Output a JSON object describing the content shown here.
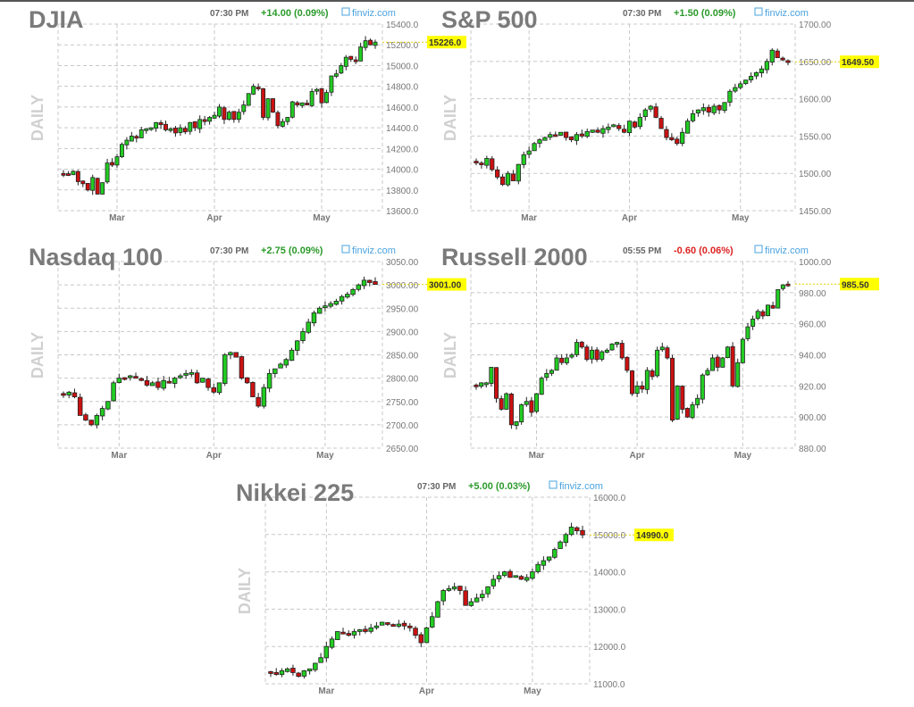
{
  "colors": {
    "up": "#22cc22",
    "down": "#cc1111",
    "grid": "#c8c8c8",
    "price_tag": "#ffff00",
    "title": "#7a7a7a",
    "positive": "#2a9a2a",
    "negative": "#dd2222",
    "brand": "#4aa3df"
  },
  "brand_label": "finviz.com",
  "period_label": "DAILY",
  "chart_data": [
    {
      "type": "candlestick",
      "title": "DJIA",
      "time": "07:30 PM",
      "change": "+14.00 (0.09%)",
      "direction": "up",
      "last_label": "15226.0",
      "last": 15226,
      "ylim": [
        13600,
        15400
      ],
      "yticks": [
        13600,
        13800,
        14000,
        14200,
        14400,
        14600,
        14800,
        15000,
        15200,
        15400
      ],
      "ytick_labels": [
        "13600.0",
        "13800.0",
        "14000.0",
        "14200.0",
        "14400.0",
        "14600.0",
        "14800.0",
        "15000.0",
        "15200.0",
        "15400.0"
      ],
      "months": [
        {
          "label": "Mar",
          "index": 11
        },
        {
          "label": "Apr",
          "index": 31
        },
        {
          "label": "May",
          "index": 53
        }
      ],
      "closes": [
        13950,
        13940,
        13980,
        13880,
        13860,
        13800,
        13920,
        13760,
        13870,
        14060,
        14040,
        14120,
        14240,
        14280,
        14320,
        14300,
        14380,
        14390,
        14400,
        14450,
        14430,
        14380,
        14390,
        14350,
        14400,
        14360,
        14450,
        14400,
        14480,
        14460,
        14500,
        14520,
        14600,
        14480,
        14550,
        14480,
        14550,
        14620,
        14730,
        14800,
        14780,
        14500,
        14680,
        14550,
        14420,
        14460,
        14500,
        14650,
        14620,
        14640,
        14620,
        14750,
        14770,
        14640,
        14740,
        14900,
        14920,
        15000,
        15080,
        15060,
        15050,
        15180,
        15240,
        15200,
        15226
      ]
    },
    {
      "type": "candlestick",
      "title": "S&P 500",
      "time": "07:30 PM",
      "change": "+1.50 (0.09%)",
      "direction": "up",
      "last_label": "1649.50",
      "last": 1649.5,
      "ylim": [
        1450,
        1700
      ],
      "yticks": [
        1450,
        1500,
        1550,
        1600,
        1650,
        1700
      ],
      "ytick_labels": [
        "1450.00",
        "1500.00",
        "1550.00",
        "1600.00",
        "1650.00",
        "1700.00"
      ],
      "months": [
        {
          "label": "Mar",
          "index": 10
        },
        {
          "label": "Apr",
          "index": 29
        },
        {
          "label": "May",
          "index": 50
        }
      ],
      "closes": [
        1515,
        1512,
        1520,
        1505,
        1495,
        1485,
        1500,
        1490,
        1512,
        1525,
        1530,
        1540,
        1545,
        1548,
        1552,
        1550,
        1555,
        1548,
        1545,
        1552,
        1550,
        1556,
        1558,
        1555,
        1560,
        1562,
        1565,
        1560,
        1555,
        1570,
        1562,
        1575,
        1585,
        1590,
        1575,
        1560,
        1548,
        1545,
        1540,
        1555,
        1570,
        1580,
        1585,
        1588,
        1582,
        1590,
        1585,
        1595,
        1610,
        1615,
        1620,
        1625,
        1630,
        1635,
        1640,
        1650,
        1665,
        1655,
        1652,
        1649.5
      ]
    },
    {
      "type": "candlestick",
      "title": "Nasdaq 100",
      "time": "07:30 PM",
      "change": "+2.75 (0.09%)",
      "direction": "up",
      "last_label": "3001.00",
      "last": 3001,
      "ylim": [
        2650,
        3050
      ],
      "yticks": [
        2650,
        2700,
        2750,
        2800,
        2850,
        2900,
        2950,
        3000,
        3050
      ],
      "ytick_labels": [
        "2650.00",
        "2700.00",
        "2750.00",
        "2800.00",
        "2850.00",
        "2900.00",
        "2950.00",
        "3000.00",
        "3050.00"
      ],
      "months": [
        {
          "label": "Mar",
          "index": 10
        },
        {
          "label": "Apr",
          "index": 27
        },
        {
          "label": "May",
          "index": 47
        }
      ],
      "closes": [
        2765,
        2770,
        2760,
        2720,
        2710,
        2700,
        2720,
        2735,
        2750,
        2790,
        2800,
        2800,
        2805,
        2800,
        2795,
        2785,
        2790,
        2780,
        2795,
        2790,
        2800,
        2805,
        2810,
        2812,
        2790,
        2800,
        2780,
        2770,
        2790,
        2850,
        2855,
        2845,
        2800,
        2790,
        2760,
        2740,
        2780,
        2810,
        2820,
        2830,
        2840,
        2860,
        2880,
        2900,
        2920,
        2940,
        2950,
        2955,
        2960,
        2965,
        2975,
        2980,
        2990,
        3000,
        3010,
        3005,
        3001
      ]
    },
    {
      "type": "candlestick",
      "title": "Russell 2000",
      "time": "05:55 PM",
      "change": "-0.60 (0.06%)",
      "direction": "down",
      "last_label": "985.50",
      "last": 985.5,
      "ylim": [
        880,
        1000
      ],
      "yticks": [
        880,
        900,
        920,
        940,
        960,
        980,
        1000
      ],
      "ytick_labels": [
        "880.00",
        "900.00",
        "920.00",
        "940.00",
        "960.00",
        "980.00",
        "1000.00"
      ],
      "months": [
        {
          "label": "Mar",
          "index": 12
        },
        {
          "label": "Apr",
          "index": 32
        },
        {
          "label": "May",
          "index": 53
        }
      ],
      "closes": [
        920,
        922,
        922,
        932,
        912,
        905,
        915,
        895,
        897,
        908,
        910,
        903,
        915,
        925,
        928,
        930,
        938,
        935,
        938,
        940,
        948,
        945,
        937,
        943,
        937,
        942,
        943,
        947,
        948,
        938,
        930,
        915,
        920,
        918,
        930,
        926,
        943,
        945,
        938,
        898,
        920,
        905,
        900,
        908,
        912,
        927,
        930,
        938,
        932,
        938,
        945,
        920,
        935,
        950,
        958,
        963,
        968,
        965,
        972,
        970,
        982,
        985,
        985.5
      ]
    },
    {
      "type": "candlestick",
      "title": "Nikkei 225",
      "time": "07:30 PM",
      "change": "+5.00 (0.03%)",
      "direction": "up",
      "last_label": "14990.0",
      "last": 14990,
      "ylim": [
        11000,
        16000
      ],
      "yticks": [
        11000,
        12000,
        13000,
        14000,
        15000,
        16000
      ],
      "ytick_labels": [
        "11000.0",
        "12000.0",
        "13000.0",
        "14000.0",
        "15000.0",
        "16000.0"
      ],
      "months": [
        {
          "label": "Mar",
          "index": 10
        },
        {
          "label": "Apr",
          "index": 28
        },
        {
          "label": "May",
          "index": 47
        }
      ],
      "closes": [
        11300,
        11250,
        11350,
        11400,
        11300,
        11200,
        11350,
        11400,
        11550,
        11700,
        12000,
        12200,
        12400,
        12350,
        12300,
        12400,
        12450,
        12400,
        12500,
        12550,
        12650,
        12600,
        12550,
        12600,
        12550,
        12500,
        12300,
        12100,
        12500,
        12800,
        13200,
        13500,
        13550,
        13600,
        13500,
        13100,
        13200,
        13300,
        13400,
        13600,
        13800,
        13900,
        14000,
        13850,
        13900,
        13800,
        13850,
        14000,
        14200,
        14300,
        14400,
        14600,
        14800,
        15000,
        15200,
        15100,
        14990
      ]
    }
  ]
}
